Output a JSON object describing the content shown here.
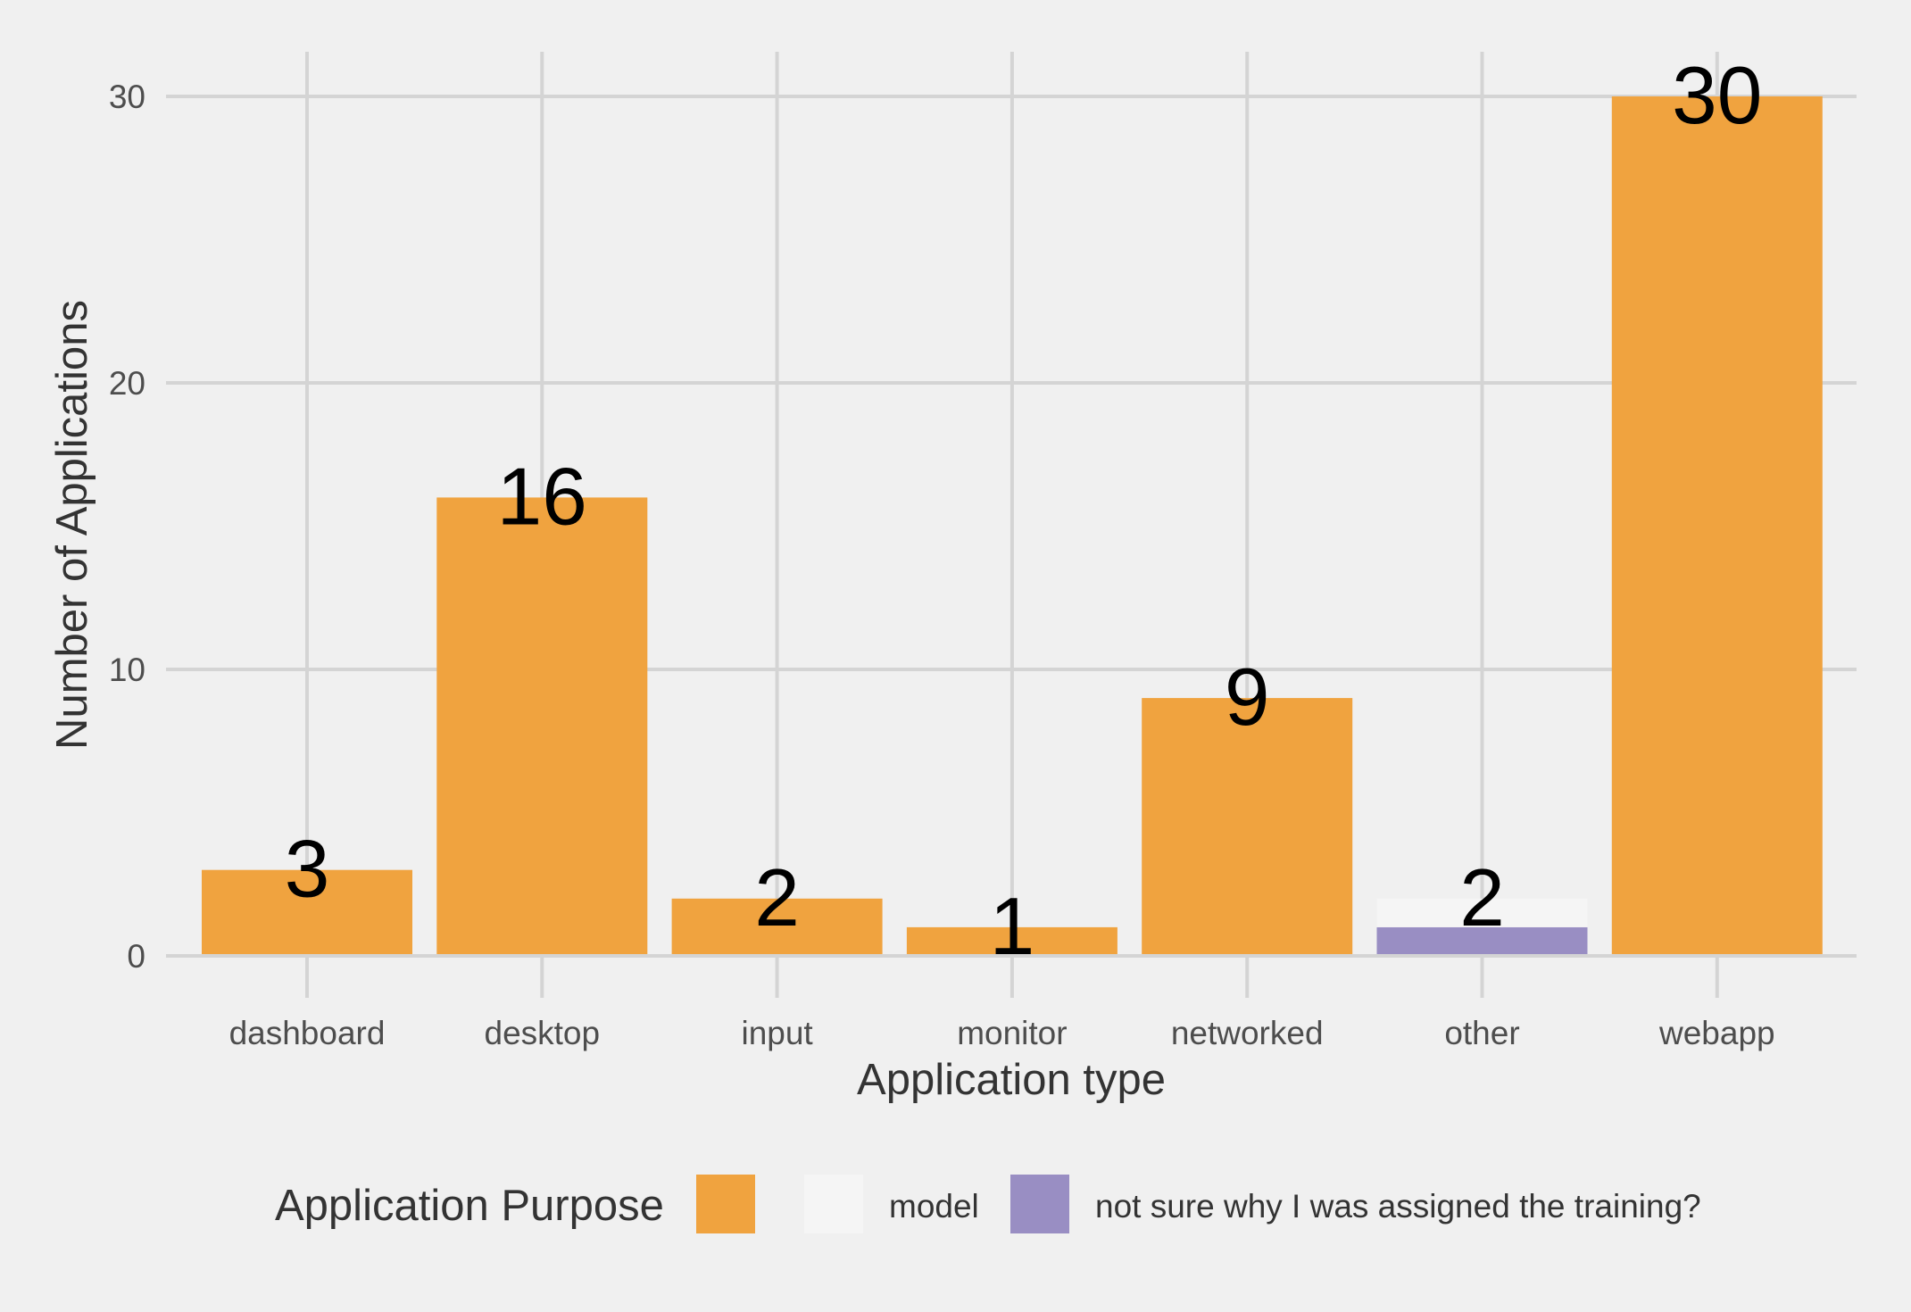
{
  "chart_data": {
    "type": "bar",
    "stacked": true,
    "categories": [
      "dashboard",
      "desktop",
      "input",
      "monitor",
      "networked",
      "other",
      "webapp"
    ],
    "series": [
      {
        "name": "",
        "color": "#f0a33f",
        "values": [
          3,
          16,
          2,
          1,
          9,
          0,
          30
        ]
      },
      {
        "name": "model",
        "color": "#f5f5f5",
        "values": [
          0,
          0,
          0,
          0,
          0,
          1,
          0
        ]
      },
      {
        "name": "not sure why I was assigned the training?",
        "color": "#998ec3",
        "values": [
          0,
          0,
          0,
          0,
          0,
          1,
          0
        ]
      }
    ],
    "totals": [
      3,
      16,
      2,
      1,
      9,
      2,
      30
    ],
    "data_labels": [
      "3",
      "16",
      "2",
      "1",
      "9",
      "2",
      "30"
    ],
    "xlabel": "Application type",
    "ylabel": "Number of Applications",
    "ylim": [
      0,
      30
    ],
    "yticks": [
      0,
      10,
      20,
      30
    ],
    "grid": true,
    "legend": {
      "title": "Application Purpose",
      "position": "bottom"
    },
    "colors": {
      "background": "#f0f0f0",
      "grid": "#d4d4d4",
      "text": "#4d4d4d"
    }
  }
}
